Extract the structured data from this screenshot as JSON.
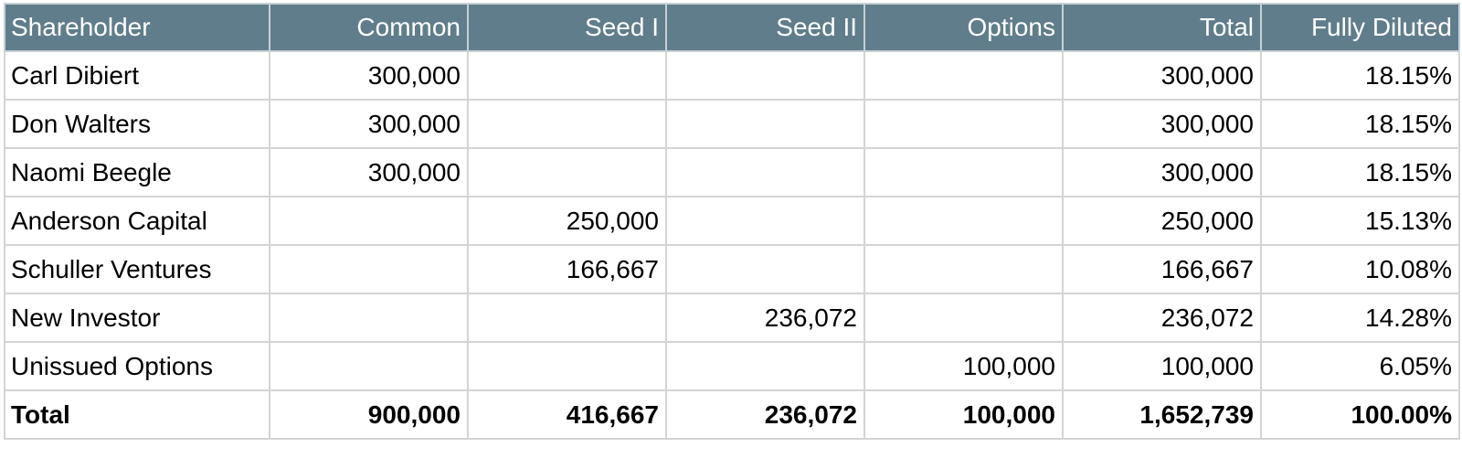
{
  "table": {
    "headers": [
      "Shareholder",
      "Common",
      "Seed I",
      "Seed II",
      "Options",
      "Total",
      "Fully Diluted"
    ],
    "rows": [
      [
        "Carl Dibiert",
        "300,000",
        "",
        "",
        "",
        "300,000",
        "18.15%"
      ],
      [
        "Don Walters",
        "300,000",
        "",
        "",
        "",
        "300,000",
        "18.15%"
      ],
      [
        "Naomi Beegle",
        "300,000",
        "",
        "",
        "",
        "300,000",
        "18.15%"
      ],
      [
        "Anderson Capital",
        "",
        "250,000",
        "",
        "",
        "250,000",
        "15.13%"
      ],
      [
        "Schuller Ventures",
        "",
        "166,667",
        "",
        "",
        "166,667",
        "10.08%"
      ],
      [
        "New Investor",
        "",
        "",
        "236,072",
        "",
        "236,072",
        "14.28%"
      ],
      [
        "Unissued Options",
        "",
        "",
        "",
        "100,000",
        "100,000",
        "6.05%"
      ]
    ],
    "total_row": [
      "Total",
      "900,000",
      "416,667",
      "236,072",
      "100,000",
      "1,652,739",
      "100.00%"
    ]
  },
  "colors": {
    "header_background": "#607d8b",
    "header_text": "#ffffff",
    "grid_line": "#d4d4d4"
  }
}
